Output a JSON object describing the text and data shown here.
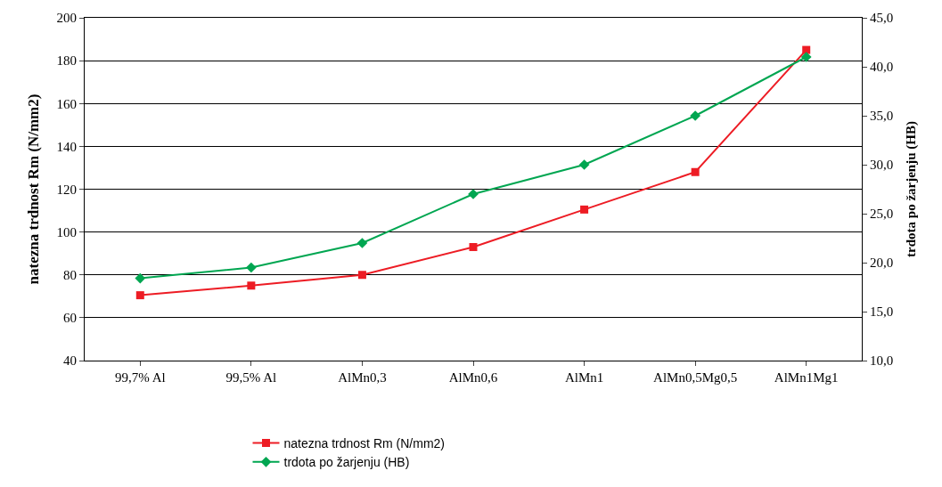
{
  "chart_data": {
    "type": "line",
    "ylabel": "natezna trdnost Rm (N/mm2)",
    "y2label": "trdota po žarjenju (HB)",
    "categories": [
      "99,7% Al",
      "99,5% Al",
      "AlMn0,3",
      "AlMn0,6",
      "AlMn1",
      "AlMn0,5Mg0,5",
      "AlMn1Mg1"
    ],
    "series": [
      {
        "name": "natezna trdnost Rm (N/mm2)",
        "color": "#ed1c24",
        "marker": "square",
        "values": [
          70.5,
          75,
          80,
          93,
          110.5,
          128,
          185
        ]
      },
      {
        "name": "trdota po žarjenju (HB)",
        "color": "#00a651",
        "marker": "diamond",
        "axis": "y2",
        "values": [
          18.4,
          19.5,
          22.0,
          27.0,
          30.0,
          35.0,
          41.0
        ]
      }
    ],
    "ylim": [
      40,
      200
    ],
    "yticks": [
      40,
      60,
      80,
      100,
      120,
      140,
      160,
      180,
      200
    ],
    "y2lim": [
      10,
      45
    ],
    "y2ticks": [
      {
        "value": 10,
        "label": "10,0"
      },
      {
        "value": 15,
        "label": "15,0"
      },
      {
        "value": 20,
        "label": "20,0"
      },
      {
        "value": 25,
        "label": "25,0"
      },
      {
        "value": 30,
        "label": "30,0"
      },
      {
        "value": 35,
        "label": "35,0"
      },
      {
        "value": 40,
        "label": "40,0"
      },
      {
        "value": 45,
        "label": "45,0"
      }
    ],
    "grid": "y",
    "legend": "bottom",
    "line_style": "solid"
  }
}
